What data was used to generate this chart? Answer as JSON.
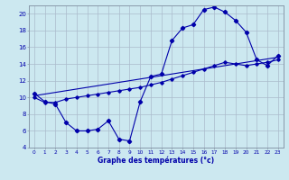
{
  "xlabel": "Graphe des températures (°c)",
  "bg_color": "#cce8f0",
  "grid_color": "#aabbcc",
  "line_color": "#0000aa",
  "xlim": [
    -0.5,
    23.5
  ],
  "ylim": [
    4,
    21
  ],
  "yticks": [
    4,
    6,
    8,
    10,
    12,
    14,
    16,
    18,
    20
  ],
  "xticks": [
    0,
    1,
    2,
    3,
    4,
    5,
    6,
    7,
    8,
    9,
    10,
    11,
    12,
    13,
    14,
    15,
    16,
    17,
    18,
    19,
    20,
    21,
    22,
    23
  ],
  "series1_x": [
    0,
    1,
    2,
    3,
    4,
    5,
    6,
    7,
    8,
    9,
    10,
    11,
    12,
    13,
    14,
    15,
    16,
    17,
    18,
    19,
    20,
    21,
    22,
    23
  ],
  "series1_y": [
    10.5,
    9.5,
    9.2,
    7.0,
    6.0,
    6.0,
    6.2,
    7.2,
    5.0,
    4.8,
    9.5,
    12.5,
    12.8,
    16.8,
    18.3,
    18.7,
    20.5,
    20.8,
    20.2,
    19.2,
    17.8,
    14.5,
    13.8,
    15.0
  ],
  "series2_x": [
    0,
    1,
    2,
    3,
    4,
    5,
    6,
    7,
    8,
    9,
    10,
    11,
    12,
    13,
    14,
    15,
    16,
    17,
    18,
    19,
    20,
    21,
    22,
    23
  ],
  "series2_y": [
    10.0,
    9.4,
    9.4,
    9.8,
    10.0,
    10.2,
    10.4,
    10.6,
    10.8,
    11.0,
    11.2,
    11.5,
    11.8,
    12.2,
    12.6,
    13.0,
    13.4,
    13.8,
    14.2,
    14.0,
    13.8,
    14.0,
    14.2,
    14.5
  ],
  "series3_x": [
    0,
    23
  ],
  "series3_y": [
    10.2,
    14.8
  ]
}
